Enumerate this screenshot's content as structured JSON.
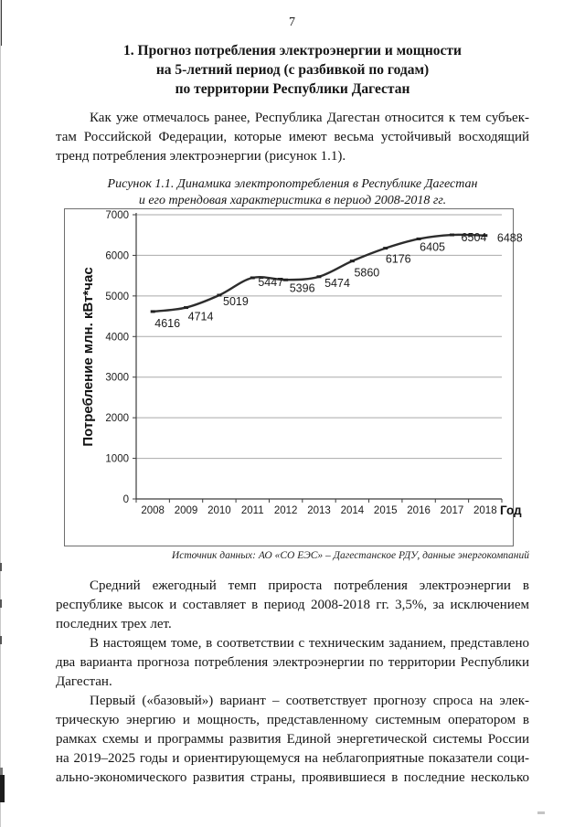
{
  "page": {
    "number": "7",
    "heading": {
      "line1": "1. Прогноз потребления электроэнергии и мощности",
      "line2": "на 5-летний период (с разбивкой по годам)",
      "line3": "по территории Республики Дагестан"
    },
    "paragraphs_top": [
      {
        "lines": [
          "Как уже отмечалось ранее, Республика Дагестан относится к тем субъек-",
          "там Российской Федерации, которые имеют весьма устойчивый восходящий",
          "тренд потребления электроэнергии (рисунок 1.1)."
        ]
      }
    ],
    "figure": {
      "caption_line1": "Рисунок 1.1. Динамика электропотребления в Республике Дагестан",
      "caption_line2": "и его трендовая характеристика в период 2008-2018 гг.",
      "source_note": "Источник данных: АО «СО ЕЭС» – Дагестанское РДУ, данные энергокомпаний"
    },
    "paragraphs_bottom": [
      {
        "lines": [
          "Средний ежегодный темп прироста потребления электроэнергии в",
          "республике высок и составляет в период 2008-2018 гг. 3,5%, за исключением",
          "последних трех лет."
        ]
      },
      {
        "lines": [
          "В настоящем томе, в соответствии с техническим заданием, представлено",
          "два варианта прогноза потребления электроэнергии по территории Республики",
          "Дагестан."
        ]
      },
      {
        "lines": [
          "Первый («базовый») вариант – соответствует прогнозу спроса на элек-",
          "трическую энергию и мощность, представленному системным оператором в",
          "рамках схемы и программы развития Единой энергетической системы России",
          "на 2019–2025 годы и ориентирующемуся на неблагоприятные показатели соци-",
          "ально-экономического развития страны, проявившиеся в последние несколько"
        ]
      }
    ]
  },
  "chart_data": {
    "type": "line",
    "title": "Динамика электропотребления в Республике Дагестан и его трендовая характеристика в период 2008-2018 гг.",
    "categories": [
      "2008",
      "2009",
      "2010",
      "2011",
      "2012",
      "2013",
      "2014",
      "2015",
      "2016",
      "2017",
      "2018"
    ],
    "values": [
      4616,
      4714,
      5019,
      5447,
      5396,
      5474,
      5860,
      6176,
      6405,
      6504,
      6488
    ],
    "xlabel": "Год",
    "ylabel": "Потребление млн. кВт*час",
    "ylim": [
      0,
      7000
    ],
    "ytick_step": 1000,
    "grid": true,
    "legend_position": "none",
    "line_color": "#2d2d2d",
    "grid_color": "#a9a9a9"
  }
}
